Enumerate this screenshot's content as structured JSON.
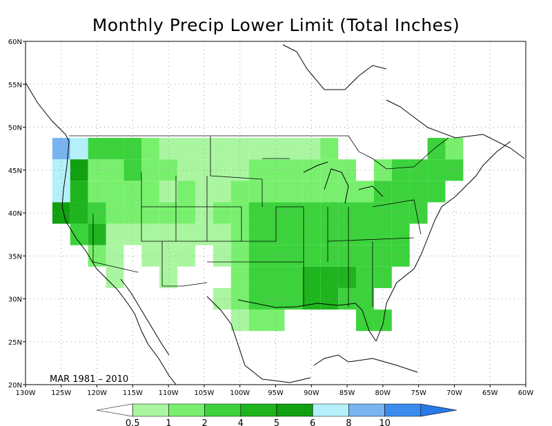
{
  "title": "Monthly Precip Lower Limit (Total Inches)",
  "period_label": "MAR 1981 – 2010",
  "colors": {
    "c0": "#ffffff",
    "c05": "#aaf5a0",
    "c1": "#78f06e",
    "c2": "#3cd23c",
    "c4": "#1eb41e",
    "c5": "#10a010",
    "c6": "#b4f0fa",
    "c8": "#78b4f0",
    "c10": "#3c8cf0",
    "c10p": "#2878e6"
  },
  "map_data": {
    "lon_range": [
      -130,
      -60
    ],
    "lat_range": [
      20,
      60
    ],
    "lon_ticks": [
      "130W",
      "125W",
      "120W",
      "115W",
      "110W",
      "105W",
      "100W",
      "95W",
      "90W",
      "85W",
      "80W",
      "75W",
      "70W",
      "65W",
      "60W"
    ],
    "lat_ticks": [
      "20N",
      "25N",
      "30N",
      "35N",
      "40N",
      "45N",
      "50N",
      "55N",
      "60N"
    ],
    "colorbar": {
      "labels": [
        "0.5",
        "1",
        "2",
        "4",
        "5",
        "6",
        "8",
        "10"
      ],
      "colors": [
        "#ffffff",
        "#aaf5a0",
        "#78f06e",
        "#3cd23c",
        "#1eb41e",
        "#10a010",
        "#b4f0fa",
        "#78b4f0",
        "#3c8cf0",
        "#2878e6"
      ]
    },
    "cells": [
      {
        "lon": -125,
        "lat": 47.5,
        "v": 8
      },
      {
        "lon": -125,
        "lat": 45,
        "v": 6
      },
      {
        "lon": -125,
        "lat": 42.5,
        "v": 6
      },
      {
        "lon": -125,
        "lat": 40,
        "v": 5
      },
      {
        "lon": -122.5,
        "lat": 47.5,
        "v": 6
      },
      {
        "lon": -122.5,
        "lat": 45,
        "v": 5
      },
      {
        "lon": -122.5,
        "lat": 42.5,
        "v": 4
      },
      {
        "lon": -122.5,
        "lat": 40,
        "v": 4
      },
      {
        "lon": -122.5,
        "lat": 37.5,
        "v": 2
      },
      {
        "lon": -120,
        "lat": 47.5,
        "v": 2
      },
      {
        "lon": -120,
        "lat": 45,
        "v": 1
      },
      {
        "lon": -120,
        "lat": 42.5,
        "v": 1
      },
      {
        "lon": -120,
        "lat": 40,
        "v": 2
      },
      {
        "lon": -120,
        "lat": 37.5,
        "v": 4
      },
      {
        "lon": -120,
        "lat": 35,
        "v": 1
      },
      {
        "lon": -117.5,
        "lat": 47.5,
        "v": 2
      },
      {
        "lon": -117.5,
        "lat": 45,
        "v": 1
      },
      {
        "lon": -117.5,
        "lat": 42.5,
        "v": 1
      },
      {
        "lon": -117.5,
        "lat": 40,
        "v": 1
      },
      {
        "lon": -117.5,
        "lat": 37.5,
        "v": 0.5
      },
      {
        "lon": -117.5,
        "lat": 35,
        "v": 0.5
      },
      {
        "lon": -117.5,
        "lat": 32.5,
        "v": 0.5
      },
      {
        "lon": -115,
        "lat": 47.5,
        "v": 2
      },
      {
        "lon": -115,
        "lat": 45,
        "v": 2
      },
      {
        "lon": -115,
        "lat": 42.5,
        "v": 1
      },
      {
        "lon": -115,
        "lat": 40,
        "v": 1
      },
      {
        "lon": -115,
        "lat": 37.5,
        "v": 0.5
      },
      {
        "lon": -115,
        "lat": 35,
        "v": 0
      },
      {
        "lon": -115,
        "lat": 32.5,
        "v": 0
      },
      {
        "lon": -112.5,
        "lat": 47.5,
        "v": 1
      },
      {
        "lon": -112.5,
        "lat": 45,
        "v": 1
      },
      {
        "lon": -112.5,
        "lat": 42.5,
        "v": 1
      },
      {
        "lon": -112.5,
        "lat": 40,
        "v": 1
      },
      {
        "lon": -112.5,
        "lat": 37.5,
        "v": 0.5
      },
      {
        "lon": -112.5,
        "lat": 35,
        "v": 0.5
      },
      {
        "lon": -112.5,
        "lat": 32.5,
        "v": 0
      },
      {
        "lon": -110,
        "lat": 47.5,
        "v": 0.5
      },
      {
        "lon": -110,
        "lat": 45,
        "v": 1
      },
      {
        "lon": -110,
        "lat": 42.5,
        "v": 0.5
      },
      {
        "lon": -110,
        "lat": 40,
        "v": 1
      },
      {
        "lon": -110,
        "lat": 37.5,
        "v": 0.5
      },
      {
        "lon": -110,
        "lat": 35,
        "v": 0.5
      },
      {
        "lon": -110,
        "lat": 32.5,
        "v": 0.5
      },
      {
        "lon": -107.5,
        "lat": 47.5,
        "v": 0.5
      },
      {
        "lon": -107.5,
        "lat": 45,
        "v": 0.5
      },
      {
        "lon": -107.5,
        "lat": 42.5,
        "v": 1
      },
      {
        "lon": -107.5,
        "lat": 40,
        "v": 1
      },
      {
        "lon": -107.5,
        "lat": 37.5,
        "v": 0.5
      },
      {
        "lon": -107.5,
        "lat": 35,
        "v": 0.5
      },
      {
        "lon": -107.5,
        "lat": 32.5,
        "v": 0
      },
      {
        "lon": -105,
        "lat": 47.5,
        "v": 0.5
      },
      {
        "lon": -105,
        "lat": 45,
        "v": 0.5
      },
      {
        "lon": -105,
        "lat": 42.5,
        "v": 0.5
      },
      {
        "lon": -105,
        "lat": 40,
        "v": 0.5
      },
      {
        "lon": -105,
        "lat": 37.5,
        "v": 0.5
      },
      {
        "lon": -105,
        "lat": 35,
        "v": 0
      },
      {
        "lon": -105,
        "lat": 32.5,
        "v": 0
      },
      {
        "lon": -102.5,
        "lat": 47.5,
        "v": 0.5
      },
      {
        "lon": -102.5,
        "lat": 45,
        "v": 0.5
      },
      {
        "lon": -102.5,
        "lat": 42.5,
        "v": 0.5
      },
      {
        "lon": -102.5,
        "lat": 40,
        "v": 1
      },
      {
        "lon": -102.5,
        "lat": 37.5,
        "v": 0.5
      },
      {
        "lon": -102.5,
        "lat": 35,
        "v": 0.5
      },
      {
        "lon": -102.5,
        "lat": 32.5,
        "v": 0
      },
      {
        "lon": -102.5,
        "lat": 30,
        "v": 0.5
      },
      {
        "lon": -100,
        "lat": 47.5,
        "v": 0.5
      },
      {
        "lon": -100,
        "lat": 45,
        "v": 0.5
      },
      {
        "lon": -100,
        "lat": 42.5,
        "v": 1
      },
      {
        "lon": -100,
        "lat": 40,
        "v": 1
      },
      {
        "lon": -100,
        "lat": 37.5,
        "v": 1
      },
      {
        "lon": -100,
        "lat": 35,
        "v": 1
      },
      {
        "lon": -100,
        "lat": 32.5,
        "v": 1
      },
      {
        "lon": -100,
        "lat": 30,
        "v": 1
      },
      {
        "lon": -100,
        "lat": 27.5,
        "v": 0.5
      },
      {
        "lon": -97.5,
        "lat": 47.5,
        "v": 0.5
      },
      {
        "lon": -97.5,
        "lat": 45,
        "v": 1
      },
      {
        "lon": -97.5,
        "lat": 42.5,
        "v": 1
      },
      {
        "lon": -97.5,
        "lat": 40,
        "v": 2
      },
      {
        "lon": -97.5,
        "lat": 37.5,
        "v": 2
      },
      {
        "lon": -97.5,
        "lat": 35,
        "v": 2
      },
      {
        "lon": -97.5,
        "lat": 32.5,
        "v": 2
      },
      {
        "lon": -97.5,
        "lat": 30,
        "v": 2
      },
      {
        "lon": -97.5,
        "lat": 27.5,
        "v": 1
      },
      {
        "lon": -95,
        "lat": 47.5,
        "v": 0.5
      },
      {
        "lon": -95,
        "lat": 45,
        "v": 1
      },
      {
        "lon": -95,
        "lat": 42.5,
        "v": 1
      },
      {
        "lon": -95,
        "lat": 40,
        "v": 2
      },
      {
        "lon": -95,
        "lat": 37.5,
        "v": 2
      },
      {
        "lon": -95,
        "lat": 35,
        "v": 2
      },
      {
        "lon": -95,
        "lat": 32.5,
        "v": 2
      },
      {
        "lon": -95,
        "lat": 30,
        "v": 2
      },
      {
        "lon": -95,
        "lat": 27.5,
        "v": 1
      },
      {
        "lon": -92.5,
        "lat": 47.5,
        "v": 0.5
      },
      {
        "lon": -92.5,
        "lat": 45,
        "v": 1
      },
      {
        "lon": -92.5,
        "lat": 42.5,
        "v": 1
      },
      {
        "lon": -92.5,
        "lat": 40,
        "v": 2
      },
      {
        "lon": -92.5,
        "lat": 37.5,
        "v": 2
      },
      {
        "lon": -92.5,
        "lat": 35,
        "v": 2
      },
      {
        "lon": -92.5,
        "lat": 32.5,
        "v": 2
      },
      {
        "lon": -92.5,
        "lat": 30,
        "v": 2
      },
      {
        "lon": -90,
        "lat": 47.5,
        "v": 0.5
      },
      {
        "lon": -90,
        "lat": 45,
        "v": 1
      },
      {
        "lon": -90,
        "lat": 42.5,
        "v": 1
      },
      {
        "lon": -90,
        "lat": 40,
        "v": 2
      },
      {
        "lon": -90,
        "lat": 37.5,
        "v": 2
      },
      {
        "lon": -90,
        "lat": 35,
        "v": 2
      },
      {
        "lon": -90,
        "lat": 32.5,
        "v": 4
      },
      {
        "lon": -90,
        "lat": 30,
        "v": 4
      },
      {
        "lon": -87.5,
        "lat": 47.5,
        "v": 1
      },
      {
        "lon": -87.5,
        "lat": 45,
        "v": 1
      },
      {
        "lon": -87.5,
        "lat": 42.5,
        "v": 1
      },
      {
        "lon": -87.5,
        "lat": 40,
        "v": 2
      },
      {
        "lon": -87.5,
        "lat": 37.5,
        "v": 2
      },
      {
        "lon": -87.5,
        "lat": 35,
        "v": 2
      },
      {
        "lon": -87.5,
        "lat": 32.5,
        "v": 4
      },
      {
        "lon": -87.5,
        "lat": 30,
        "v": 4
      },
      {
        "lon": -85,
        "lat": 45,
        "v": 1
      },
      {
        "lon": -85,
        "lat": 42.5,
        "v": 1
      },
      {
        "lon": -85,
        "lat": 40,
        "v": 2
      },
      {
        "lon": -85,
        "lat": 37.5,
        "v": 2
      },
      {
        "lon": -85,
        "lat": 35,
        "v": 2
      },
      {
        "lon": -85,
        "lat": 32.5,
        "v": 4
      },
      {
        "lon": -85,
        "lat": 30,
        "v": 2
      },
      {
        "lon": -82.5,
        "lat": 42.5,
        "v": 1
      },
      {
        "lon": -82.5,
        "lat": 40,
        "v": 2
      },
      {
        "lon": -82.5,
        "lat": 37.5,
        "v": 2
      },
      {
        "lon": -82.5,
        "lat": 35,
        "v": 2
      },
      {
        "lon": -82.5,
        "lat": 32.5,
        "v": 2
      },
      {
        "lon": -82.5,
        "lat": 30,
        "v": 2
      },
      {
        "lon": -82.5,
        "lat": 27.5,
        "v": 2
      },
      {
        "lon": -80,
        "lat": 45,
        "v": 1
      },
      {
        "lon": -80,
        "lat": 42.5,
        "v": 2
      },
      {
        "lon": -80,
        "lat": 40,
        "v": 2
      },
      {
        "lon": -80,
        "lat": 37.5,
        "v": 2
      },
      {
        "lon": -80,
        "lat": 35,
        "v": 2
      },
      {
        "lon": -80,
        "lat": 32.5,
        "v": 2
      },
      {
        "lon": -80,
        "lat": 27.5,
        "v": 2
      },
      {
        "lon": -77.5,
        "lat": 45,
        "v": 2
      },
      {
        "lon": -77.5,
        "lat": 42.5,
        "v": 2
      },
      {
        "lon": -77.5,
        "lat": 40,
        "v": 2
      },
      {
        "lon": -77.5,
        "lat": 37.5,
        "v": 2
      },
      {
        "lon": -77.5,
        "lat": 35,
        "v": 2
      },
      {
        "lon": -75,
        "lat": 45,
        "v": 2
      },
      {
        "lon": -75,
        "lat": 42.5,
        "v": 2
      },
      {
        "lon": -75,
        "lat": 40,
        "v": 2
      },
      {
        "lon": -72.5,
        "lat": 47.5,
        "v": 2
      },
      {
        "lon": -72.5,
        "lat": 45,
        "v": 2
      },
      {
        "lon": -72.5,
        "lat": 42.5,
        "v": 2
      },
      {
        "lon": -70,
        "lat": 47.5,
        "v": 1
      },
      {
        "lon": -70,
        "lat": 45,
        "v": 2
      }
    ]
  }
}
